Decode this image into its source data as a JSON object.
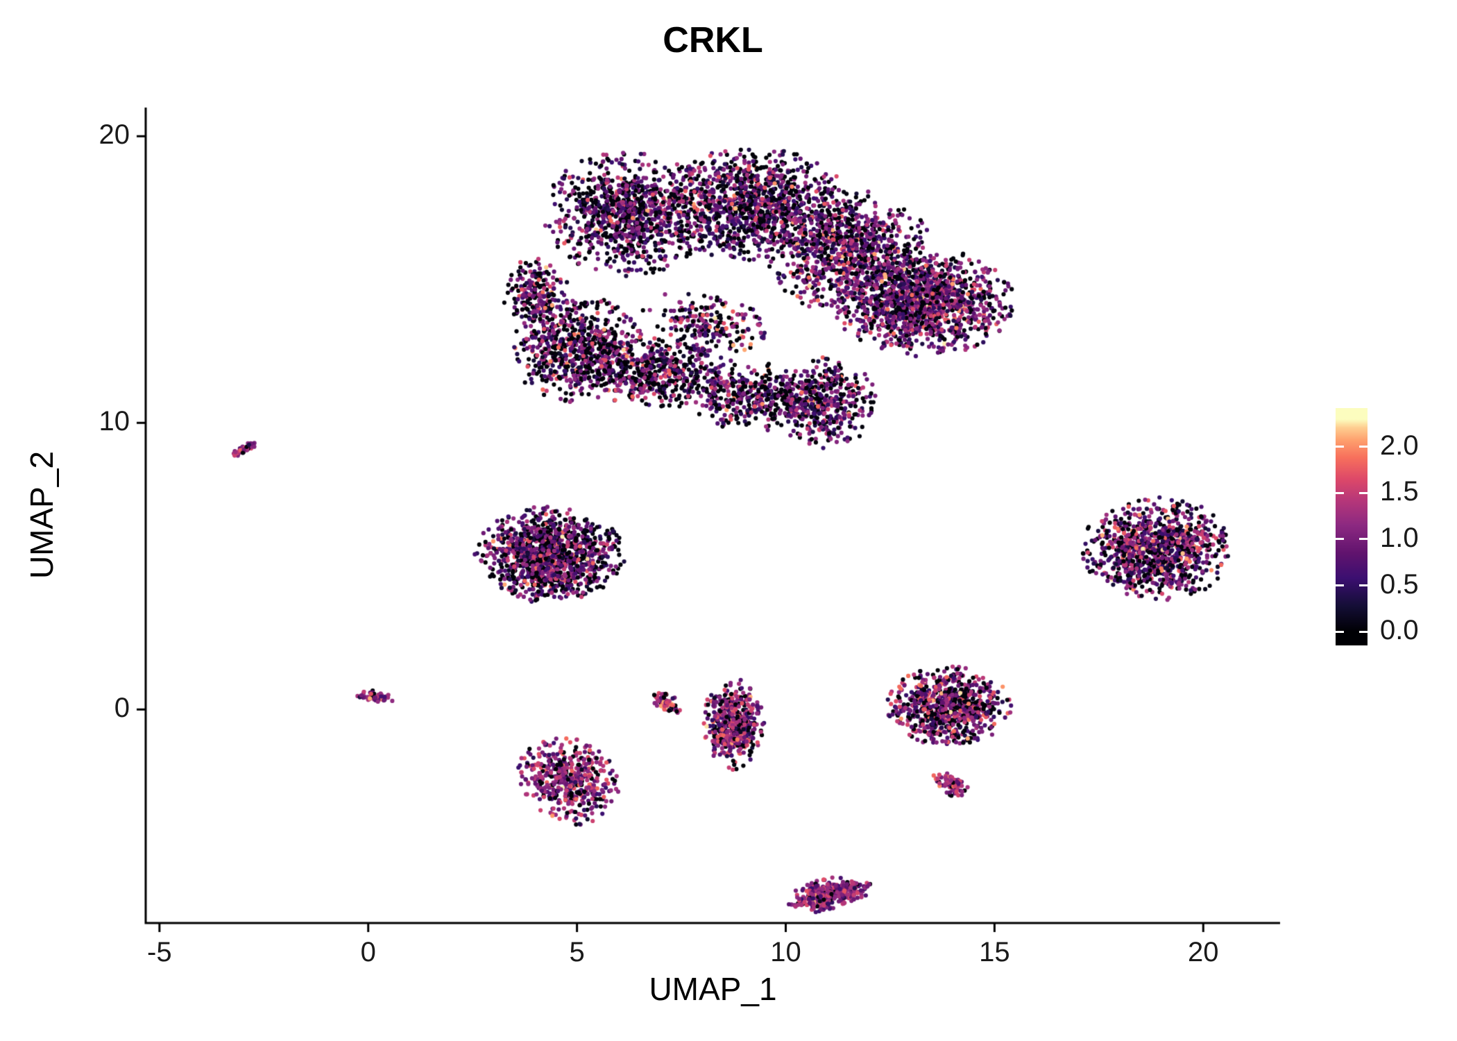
{
  "chart_data": {
    "type": "scatter",
    "title": "CRKL",
    "xlabel": "UMAP_1",
    "ylabel": "UMAP_2",
    "x_ticks": [
      -5,
      0,
      5,
      10,
      15,
      20
    ],
    "y_ticks": [
      0,
      10,
      20
    ],
    "x_range": [
      -5.33,
      21.84
    ],
    "y_range": [
      -7.45,
      21.0
    ],
    "grid": false,
    "background": "#ffffff",
    "axis_color": "#000000",
    "text_color": "#1a1a1a",
    "point_radius_px": 3.1,
    "vmax": 2.3,
    "colorbar": {
      "ticks": [
        2.0,
        1.5,
        1.0,
        0.5,
        0.0
      ],
      "position": "right"
    },
    "colormap_name": "magma",
    "colormap": [
      [
        0.0,
        "#000004"
      ],
      [
        0.12,
        "#140e36"
      ],
      [
        0.25,
        "#3b0f70"
      ],
      [
        0.37,
        "#61136e"
      ],
      [
        0.5,
        "#8c2981"
      ],
      [
        0.62,
        "#b73779"
      ],
      [
        0.72,
        "#de4968"
      ],
      [
        0.82,
        "#f7705c"
      ],
      [
        0.9,
        "#fe9f6d"
      ],
      [
        0.96,
        "#fece91"
      ],
      [
        1.0,
        "#fcfdbf"
      ]
    ],
    "clusters": [
      {
        "name": "main-top-left",
        "cx": 6.2,
        "cy": 17.3,
        "rx": 2.0,
        "ry": 2.2,
        "rot": 0,
        "n": 900,
        "zero_frac": 0.3,
        "mean": 0.8,
        "sd": 0.5
      },
      {
        "name": "main-top-mid",
        "cx": 9.2,
        "cy": 17.6,
        "rx": 2.4,
        "ry": 2.0,
        "rot": 0,
        "n": 1100,
        "zero_frac": 0.3,
        "mean": 0.8,
        "sd": 0.5
      },
      {
        "name": "main-top-right",
        "cx": 11.5,
        "cy": 16.0,
        "rx": 2.0,
        "ry": 2.2,
        "rot": 0,
        "n": 900,
        "zero_frac": 0.25,
        "mean": 0.9,
        "sd": 0.5
      },
      {
        "name": "main-right-lobe",
        "cx": 13.3,
        "cy": 14.2,
        "rx": 2.2,
        "ry": 1.9,
        "rot": 0,
        "n": 1300,
        "zero_frac": 0.22,
        "mean": 0.95,
        "sd": 0.45
      },
      {
        "name": "main-left-low",
        "cx": 5.0,
        "cy": 12.6,
        "rx": 1.6,
        "ry": 1.9,
        "rot": 0,
        "n": 650,
        "zero_frac": 0.35,
        "mean": 0.85,
        "sd": 0.55
      },
      {
        "name": "main-mid-low",
        "cx": 7.0,
        "cy": 11.8,
        "rx": 1.8,
        "ry": 1.3,
        "rot": 0,
        "n": 500,
        "zero_frac": 0.35,
        "mean": 0.9,
        "sd": 0.55
      },
      {
        "name": "main-bottom",
        "cx": 9.2,
        "cy": 10.9,
        "rx": 1.6,
        "ry": 1.2,
        "rot": 0,
        "n": 350,
        "zero_frac": 0.35,
        "mean": 0.85,
        "sd": 0.5
      },
      {
        "name": "main-bottom-right",
        "cx": 10.9,
        "cy": 10.7,
        "rx": 1.3,
        "ry": 1.6,
        "rot": 0,
        "n": 420,
        "zero_frac": 0.28,
        "mean": 0.9,
        "sd": 0.5
      },
      {
        "name": "main-left-edge",
        "cx": 4.0,
        "cy": 14.5,
        "rx": 0.8,
        "ry": 1.3,
        "rot": 0,
        "n": 200,
        "zero_frac": 0.3,
        "mean": 0.9,
        "sd": 0.5
      },
      {
        "name": "main-gap-bridge",
        "cx": 8.1,
        "cy": 13.5,
        "rx": 1.6,
        "ry": 1.0,
        "rot": -20,
        "n": 200,
        "zero_frac": 0.3,
        "mean": 1.0,
        "sd": 0.5
      },
      {
        "name": "islet-upper-left",
        "cx": -2.95,
        "cy": 9.1,
        "rx": 0.42,
        "ry": 0.12,
        "rot": 38,
        "n": 45,
        "zero_frac": 0.05,
        "mean": 1.25,
        "sd": 0.3
      },
      {
        "name": "cluster-left-mid",
        "cx": 4.35,
        "cy": 5.4,
        "rx": 1.8,
        "ry": 1.7,
        "rot": 0,
        "n": 1150,
        "zero_frac": 0.3,
        "mean": 0.9,
        "sd": 0.5
      },
      {
        "name": "cluster-right",
        "cx": 18.9,
        "cy": 5.6,
        "rx": 1.85,
        "ry": 1.8,
        "rot": 0,
        "n": 1000,
        "zero_frac": 0.28,
        "mean": 0.95,
        "sd": 0.5
      },
      {
        "name": "islet-zero",
        "cx": 0.15,
        "cy": 0.45,
        "rx": 0.5,
        "ry": 0.2,
        "rot": -12,
        "n": 60,
        "zero_frac": 0.1,
        "mean": 1.15,
        "sd": 0.3
      },
      {
        "name": "cluster-lower-left",
        "cx": 4.8,
        "cy": -2.5,
        "rx": 1.2,
        "ry": 1.6,
        "rot": 15,
        "n": 480,
        "zero_frac": 0.18,
        "mean": 1.15,
        "sd": 0.4
      },
      {
        "name": "islet-crescent",
        "cx": 7.15,
        "cy": 0.3,
        "rx": 0.3,
        "ry": 0.6,
        "rot": 20,
        "n": 60,
        "zero_frac": 0.08,
        "mean": 1.5,
        "sd": 0.45
      },
      {
        "name": "cluster-mid-column",
        "cx": 8.75,
        "cy": -0.5,
        "rx": 0.75,
        "ry": 1.6,
        "rot": 0,
        "n": 470,
        "zero_frac": 0.22,
        "mean": 1.1,
        "sd": 0.45
      },
      {
        "name": "cluster-right-mid",
        "cx": 13.9,
        "cy": 0.1,
        "rx": 1.5,
        "ry": 1.4,
        "rot": 0,
        "n": 750,
        "zero_frac": 0.25,
        "mean": 1.05,
        "sd": 0.5
      },
      {
        "name": "islet-tail",
        "cx": 13.95,
        "cy": -2.6,
        "rx": 0.55,
        "ry": 0.35,
        "rot": -50,
        "n": 80,
        "zero_frac": 0.1,
        "mean": 1.2,
        "sd": 0.35
      },
      {
        "name": "cluster-bottom",
        "cx": 11.05,
        "cy": -6.45,
        "rx": 1.05,
        "ry": 0.55,
        "rot": 20,
        "n": 360,
        "zero_frac": 0.08,
        "mean": 1.2,
        "sd": 0.35
      }
    ]
  }
}
